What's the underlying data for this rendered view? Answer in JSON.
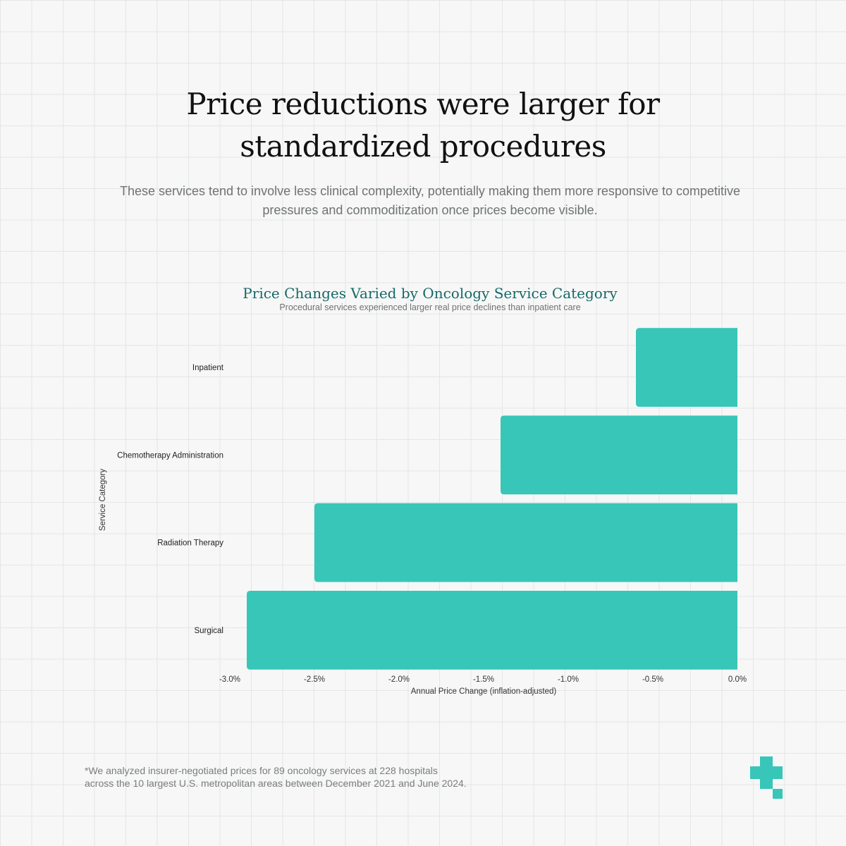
{
  "headline": "Price reductions were larger for standardized procedures",
  "subheadline": "These services tend to involve less clinical complexity, potentially making them more responsive to competitive pressures and commoditization once prices become visible.",
  "footnote": {
    "line1": "*We analyzed insurer-negotiated prices for 89 oncology services at 228 hospitals",
    "line2": "across the 10 largest U.S. metropolitan areas between December 2021 and June 2024."
  },
  "brand": {
    "accent": "#37c6b8",
    "title_color": "#15696a",
    "logo": "plus-cross-logo"
  },
  "chart_data": {
    "type": "bar",
    "orientation": "horizontal",
    "title": "Price Changes Varied by Oncology Service Category",
    "subtitle": "Procedural services experienced larger real price declines than inpatient care",
    "xlabel": "Annual Price Change (inflation-adjusted)",
    "ylabel": "Service Category",
    "categories": [
      "Inpatient",
      "Chemotherapy Administration",
      "Radiation Therapy",
      "Surgical"
    ],
    "values": [
      -0.6,
      -1.4,
      -2.5,
      -2.9
    ],
    "xlim": [
      -3.0,
      0.0
    ],
    "xticks": [
      -3.0,
      -2.5,
      -2.0,
      -1.5,
      -1.0,
      -0.5,
      0.0
    ],
    "xtick_labels": [
      "-3.0%",
      "-2.5%",
      "-2.0%",
      "-1.5%",
      "-1.0%",
      "-0.5%",
      "0.0%"
    ],
    "grid": false,
    "bar_color": "#37c6b8"
  }
}
